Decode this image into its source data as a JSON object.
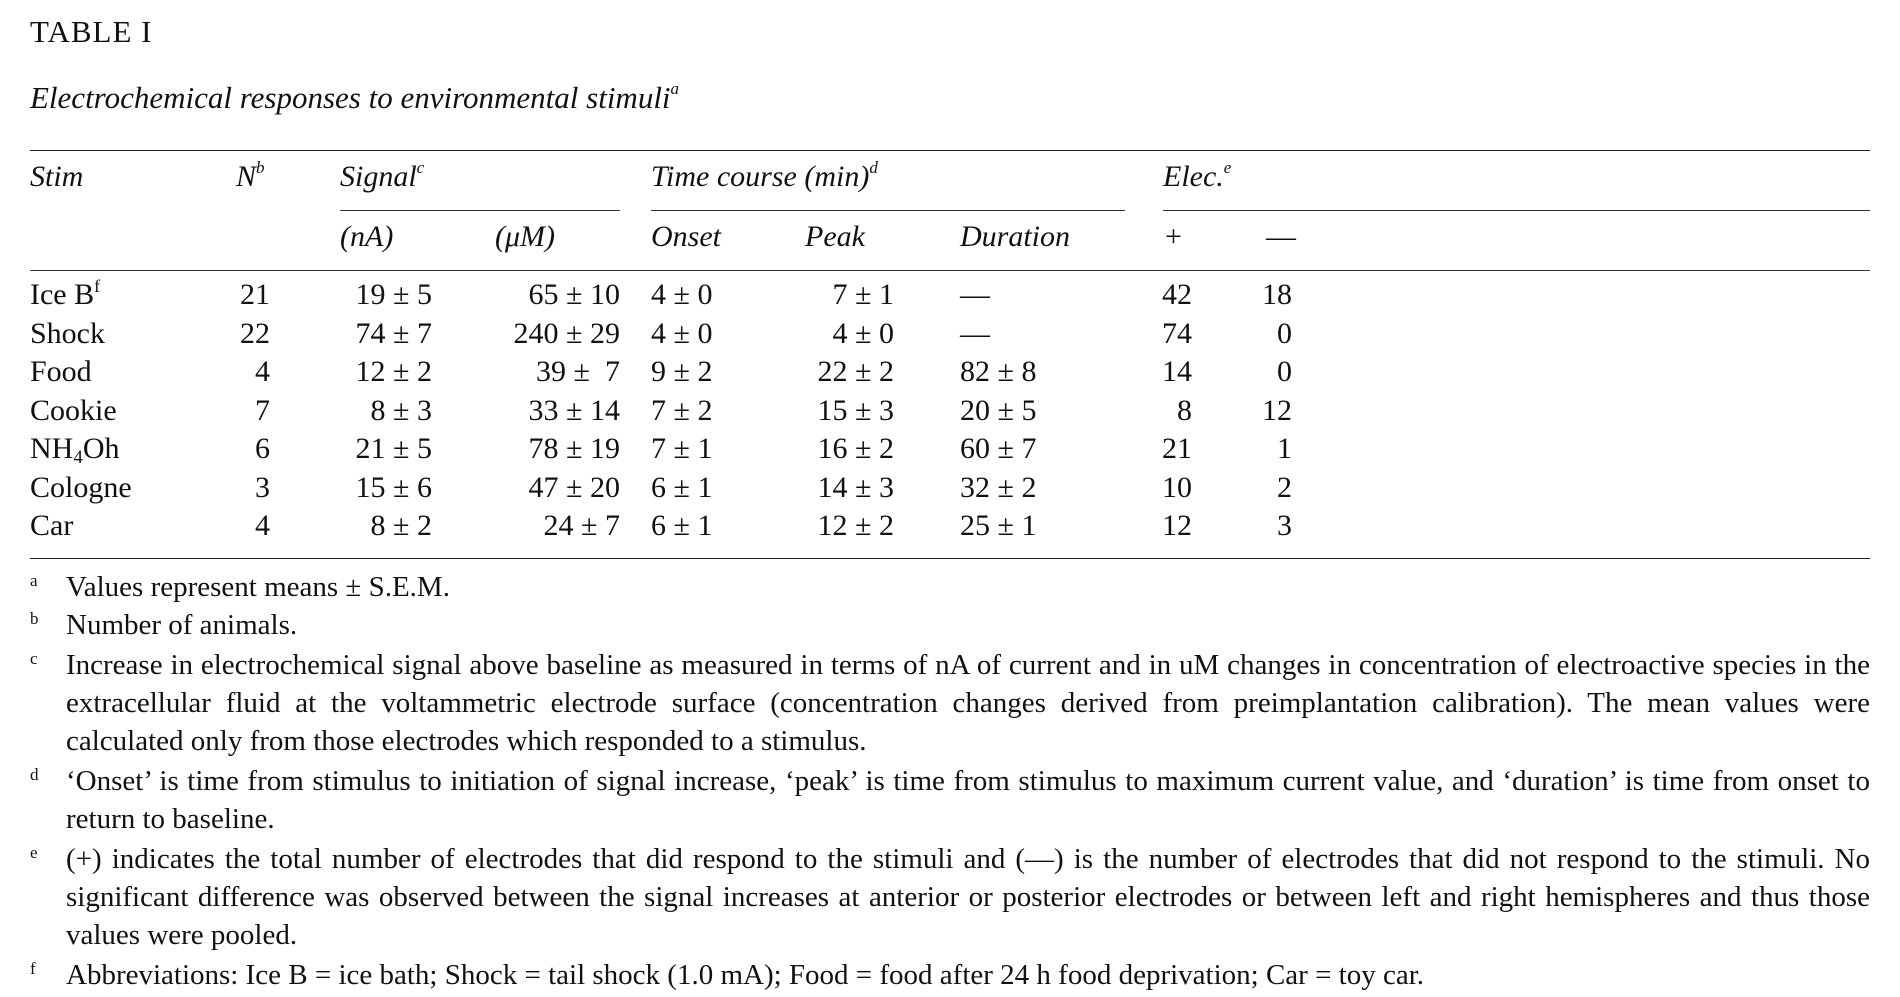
{
  "table_label": "TABLE I",
  "caption": {
    "text": "Electrochemical responses to environmental stimuli",
    "marker": "a"
  },
  "headers": {
    "stim": "Stim",
    "n": "N",
    "n_marker": "b",
    "signal": "Signal",
    "signal_marker": "c",
    "signal_na": "(nA)",
    "signal_um": "(μM)",
    "time_course": "Time course (min)",
    "time_course_marker": "d",
    "onset": "Onset",
    "peak": "Peak",
    "duration": "Duration",
    "elec": "Elec.",
    "elec_marker": "e",
    "elec_plus": "+",
    "elec_minus": "—"
  },
  "rows": [
    {
      "stim": "Ice B",
      "stim_marker": "f",
      "n": "21",
      "na": "19 ± 5",
      "um": "65 ± 10",
      "onset": "4 ± 0",
      "peak": "7 ± 1",
      "duration": "—",
      "plus": "42",
      "minus": "18"
    },
    {
      "stim": "Shock",
      "n": "22",
      "na": "74 ± 7",
      "um": "240 ± 29",
      "onset": "4 ± 0",
      "peak": "4 ± 0",
      "duration": "—",
      "plus": "74",
      "minus": "0"
    },
    {
      "stim": "Food",
      "n": "4",
      "na": "12 ± 2",
      "um": "39 ±  7",
      "onset": "9 ± 2",
      "peak": "22 ± 2",
      "duration": "82 ± 8",
      "plus": "14",
      "minus": "0"
    },
    {
      "stim": "Cookie",
      "n": "7",
      "na": "8 ± 3",
      "um": "33 ± 14",
      "onset": "7 ± 2",
      "peak": "15 ± 3",
      "duration": "20 ± 5",
      "plus": "8",
      "minus": "12"
    },
    {
      "stim_pre": "NH",
      "stim_sub": "4",
      "stim_post": "Oh",
      "n": "6",
      "na": "21 ± 5",
      "um": "78 ± 19",
      "onset": "7 ± 1",
      "peak": "16 ± 2",
      "duration": "60 ± 7",
      "plus": "21",
      "minus": "1"
    },
    {
      "stim": "Cologne",
      "n": "3",
      "na": "15 ± 6",
      "um": "47 ± 20",
      "onset": "6 ± 1",
      "peak": "14 ± 3",
      "duration": "32 ± 2",
      "plus": "10",
      "minus": "2"
    },
    {
      "stim": "Car",
      "n": "4",
      "na": "8 ± 2",
      "um": "24 ± 7",
      "onset": "6 ± 1",
      "peak": "12 ± 2",
      "duration": "25 ± 1",
      "plus": "12",
      "minus": "3"
    }
  ],
  "footnotes": [
    {
      "marker": "a",
      "text": "Values represent means ± S.E.M."
    },
    {
      "marker": "b",
      "text": "Number of animals."
    },
    {
      "marker": "c",
      "text": "Increase in electrochemical signal above baseline as measured in terms of nA of current and in uM changes in concentration of electroactive species in the extracellular fluid at the voltammetric electrode surface (concentration changes derived from preimplantation calibration). The mean values were calculated only from those electrodes which responded to a stimulus."
    },
    {
      "marker": "d",
      "text": "‘Onset’ is time from stimulus to initiation of signal increase, ‘peak’ is time from stimulus to maximum current value, and ‘duration’ is time from onset to return to baseline."
    },
    {
      "marker": "e",
      "text": "(+) indicates the total number of electrodes that did respond to the stimuli and (—) is the number of electrodes that did not respond to the stimuli. No significant difference was observed between the signal increases at anterior or posterior electrodes or between left and right hemispheres and thus those values were pooled."
    },
    {
      "marker": "f",
      "text": "Abbreviations: Ice B = ice bath; Shock = tail shock (1.0 mA); Food = food after 24 h food deprivation; Car = toy car."
    }
  ]
}
